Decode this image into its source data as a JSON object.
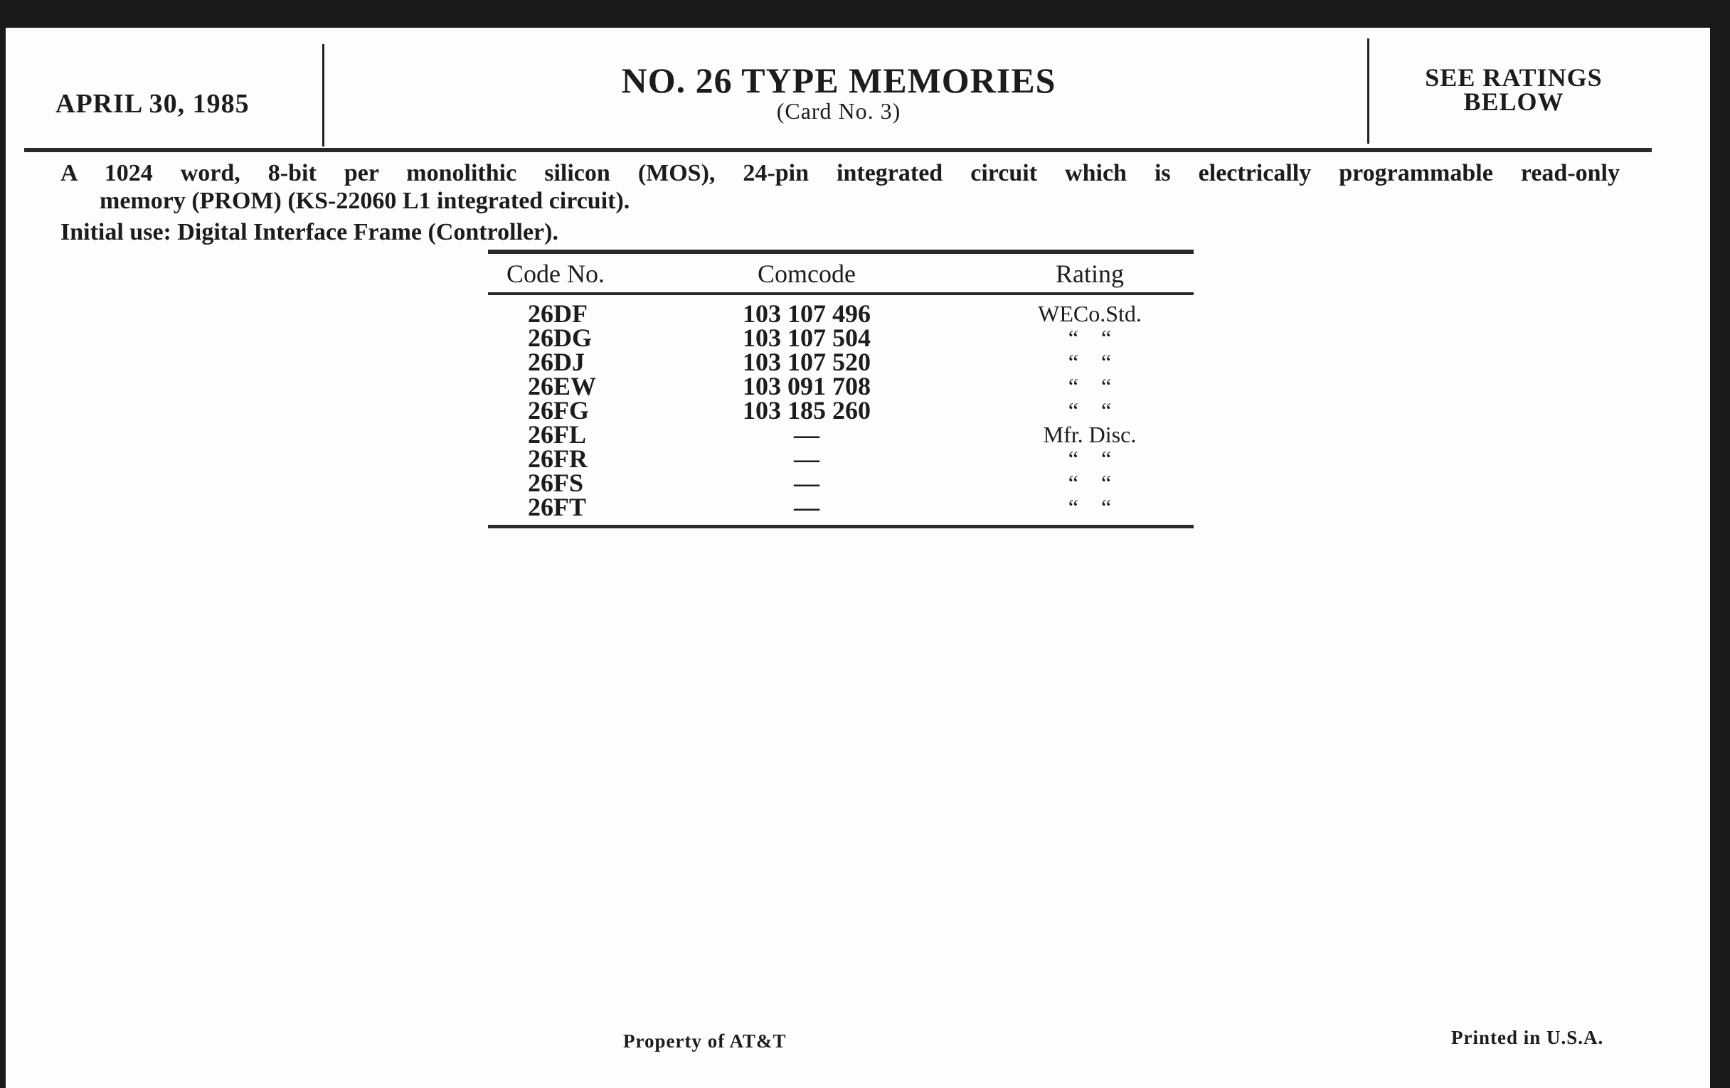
{
  "header": {
    "date": "APRIL 30, 1985",
    "title": "NO. 26 TYPE MEMORIES",
    "subtitle": "(Card No. 3)",
    "status_line1": "SEE RATINGS",
    "status_line2": "BELOW"
  },
  "description": {
    "line1": "A 1024 word, 8-bit per monolithic silicon (MOS), 24-pin integrated circuit which is electrically programmable read-only",
    "line2": "memory (PROM) (KS-22060 L1 integrated circuit).",
    "initial_use": "Initial use: Digital Interface Frame (Controller)."
  },
  "table": {
    "headers": [
      "Code No.",
      "Comcode",
      "Rating"
    ],
    "rows": [
      [
        "26DF",
        "103 107 496",
        "WECo.Std."
      ],
      [
        "26DG",
        "103 107 504",
        "“    “"
      ],
      [
        "26DJ",
        "103 107 520",
        "“    “"
      ],
      [
        "26EW",
        "103 091 708",
        "“    “"
      ],
      [
        "26FG",
        "103 185 260",
        "“    “"
      ],
      [
        "26FL",
        "—",
        "Mfr. Disc."
      ],
      [
        "26FR",
        "—",
        "“    “"
      ],
      [
        "26FS",
        "—",
        "“    “"
      ],
      [
        "26FT",
        "—",
        "“    “"
      ]
    ]
  },
  "footer": {
    "property": "Property of AT&T",
    "printed": "Printed in U.S.A."
  }
}
